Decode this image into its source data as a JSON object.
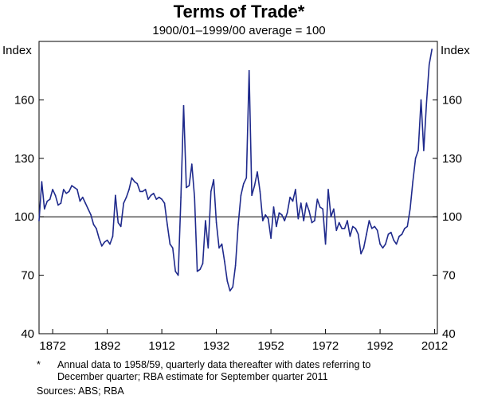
{
  "chart_data": {
    "type": "line",
    "title": "Terms of Trade*",
    "subtitle": "1900/01–1999/00 average = 100",
    "ylabel_left": "Index",
    "ylabel_right": "Index",
    "ylim": [
      40,
      190
    ],
    "yticks": [
      40,
      70,
      100,
      130,
      160
    ],
    "xlim": [
      1867,
      2013
    ],
    "xticks": [
      1872,
      1892,
      1912,
      1932,
      1952,
      1972,
      1992,
      2012
    ],
    "reference_line": 100,
    "line_color": "#1f2a8c",
    "series": [
      {
        "name": "Terms of Trade",
        "x": [
          1867,
          1868,
          1869,
          1870,
          1871,
          1872,
          1873,
          1874,
          1875,
          1876,
          1877,
          1878,
          1879,
          1880,
          1881,
          1882,
          1883,
          1884,
          1885,
          1886,
          1887,
          1888,
          1889,
          1890,
          1891,
          1892,
          1893,
          1894,
          1895,
          1896,
          1897,
          1898,
          1899,
          1900,
          1901,
          1902,
          1903,
          1904,
          1905,
          1906,
          1907,
          1908,
          1909,
          1910,
          1911,
          1912,
          1913,
          1914,
          1915,
          1916,
          1917,
          1918,
          1919,
          1920,
          1921,
          1922,
          1923,
          1924,
          1925,
          1926,
          1927,
          1928,
          1929,
          1930,
          1931,
          1932,
          1933,
          1934,
          1935,
          1936,
          1937,
          1938,
          1939,
          1940,
          1941,
          1942,
          1943,
          1944,
          1945,
          1946,
          1947,
          1948,
          1949,
          1950,
          1951,
          1952,
          1953,
          1954,
          1955,
          1956,
          1957,
          1958,
          1959,
          1960,
          1961,
          1962,
          1963,
          1964,
          1965,
          1966,
          1967,
          1968,
          1969,
          1970,
          1971,
          1972,
          1973,
          1974,
          1975,
          1976,
          1977,
          1978,
          1979,
          1980,
          1981,
          1982,
          1983,
          1984,
          1985,
          1986,
          1987,
          1988,
          1989,
          1990,
          1991,
          1992,
          1993,
          1994,
          1995,
          1996,
          1997,
          1998,
          1999,
          2000,
          2001,
          2002,
          2003,
          2004,
          2005,
          2006,
          2007,
          2008,
          2009,
          2010,
          2011
        ],
        "values": [
          98,
          118,
          104,
          108,
          109,
          114,
          111,
          106,
          107,
          114,
          112,
          113,
          116,
          115,
          114,
          108,
          110,
          107,
          104,
          101,
          96,
          94,
          89,
          85,
          87,
          88,
          86,
          90,
          111,
          97,
          95,
          107,
          110,
          114,
          120,
          118,
          117,
          113,
          113,
          114,
          109,
          111,
          112,
          109,
          110,
          109,
          107,
          96,
          86,
          84,
          72,
          70,
          110,
          157,
          115,
          116,
          127,
          110,
          72,
          73,
          76,
          98,
          84,
          113,
          119,
          97,
          84,
          86,
          77,
          67,
          62,
          64,
          75,
          96,
          111,
          117,
          120,
          175,
          111,
          116,
          123,
          113,
          98,
          101,
          99,
          89,
          105,
          95,
          102,
          101,
          98,
          102,
          110,
          108,
          114,
          99,
          107,
          98,
          107,
          103,
          97,
          98,
          109,
          105,
          104,
          86,
          114,
          100,
          104,
          93,
          97,
          94,
          94,
          98,
          90,
          95,
          94,
          91,
          81,
          84,
          91,
          98,
          94,
          95,
          93,
          86,
          84,
          86,
          91,
          92,
          88,
          86,
          90,
          91,
          94,
          95,
          104,
          118,
          130,
          134,
          160,
          134,
          158,
          178,
          186
        ]
      }
    ],
    "footnote_mark": "*",
    "footnote_text": "Annual data to 1958/59, quarterly data thereafter with dates referring to",
    "footnote_text_2": "December quarter; RBA estimate for September quarter 2011",
    "sources": "Sources: ABS; RBA"
  }
}
